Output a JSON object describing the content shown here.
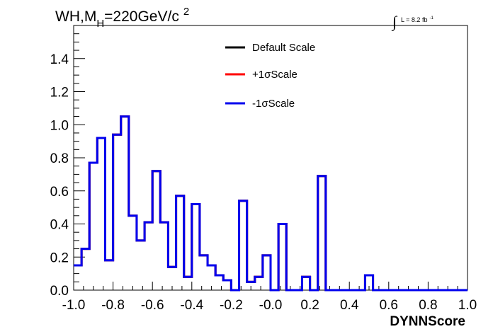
{
  "chart_data": {
    "type": "line",
    "style": "step-histogram",
    "title": "WH,M_H=220GeV/c^2",
    "title_parts": {
      "main": "WH,M",
      "sub": "H",
      "rest": "=220GeV/c",
      "sup": "2"
    },
    "luminosity_label": {
      "integral": "∫",
      "text": "L = 8.2 fb",
      "sup": "-1"
    },
    "xlabel": "DYNNScore",
    "ylabel": "",
    "xlim": [
      -1.0,
      1.0
    ],
    "ylim": [
      0.0,
      1.6
    ],
    "x_tick_labels": [
      "-1.0",
      "-0.8",
      "-0.6",
      "-0.4",
      "-0.2",
      "-0.0",
      "0.2",
      "0.4",
      "0.6",
      "0.8",
      "1.0"
    ],
    "y_tick_labels": [
      "0.0",
      "0.2",
      "0.4",
      "0.6",
      "0.8",
      "1.0",
      "1.2",
      "1.4"
    ],
    "legend_position": "top-center",
    "bin_edges_start": -1.0,
    "bin_width": 0.04,
    "series": [
      {
        "name": "Default Scale",
        "color": "#000000",
        "values": [
          0.15,
          0.25,
          0.77,
          0.92,
          0.18,
          0.94,
          1.05,
          0.45,
          0.3,
          0.41,
          0.72,
          0.41,
          0.14,
          0.57,
          0.08,
          0.52,
          0.21,
          0.15,
          0.09,
          0.06,
          0.0,
          0.54,
          0.05,
          0.08,
          0.21,
          0.0,
          0.4,
          0.0,
          0.0,
          0.08,
          0.0,
          0.69,
          0.0,
          0.0,
          0.0,
          0.0,
          0.0,
          0.09,
          0.0,
          0.0,
          0.0,
          0.0,
          0.0,
          0.0,
          0.0,
          0.0,
          0.0,
          0.0,
          0.0,
          0.0
        ]
      },
      {
        "name": "+1σScale",
        "color": "#ff0000",
        "values": [
          0.15,
          0.25,
          0.77,
          0.92,
          0.18,
          0.94,
          1.05,
          0.45,
          0.3,
          0.41,
          0.72,
          0.41,
          0.14,
          0.57,
          0.08,
          0.52,
          0.21,
          0.15,
          0.09,
          0.06,
          0.0,
          0.54,
          0.05,
          0.08,
          0.21,
          0.0,
          0.4,
          0.0,
          0.0,
          0.08,
          0.0,
          0.69,
          0.0,
          0.0,
          0.0,
          0.0,
          0.0,
          0.09,
          0.0,
          0.0,
          0.0,
          0.0,
          0.0,
          0.0,
          0.0,
          0.0,
          0.0,
          0.0,
          0.0,
          0.0
        ]
      },
      {
        "name": "-1σScale",
        "color": "#0000ee",
        "values": [
          0.15,
          0.25,
          0.77,
          0.92,
          0.18,
          0.94,
          1.05,
          0.45,
          0.3,
          0.41,
          0.72,
          0.41,
          0.14,
          0.57,
          0.08,
          0.52,
          0.21,
          0.15,
          0.09,
          0.06,
          0.0,
          0.54,
          0.05,
          0.08,
          0.21,
          0.0,
          0.4,
          0.0,
          0.0,
          0.08,
          0.0,
          0.69,
          0.0,
          0.0,
          0.0,
          0.0,
          0.0,
          0.09,
          0.0,
          0.0,
          0.0,
          0.0,
          0.0,
          0.0,
          0.0,
          0.0,
          0.0,
          0.0,
          0.0,
          0.0
        ]
      }
    ]
  }
}
